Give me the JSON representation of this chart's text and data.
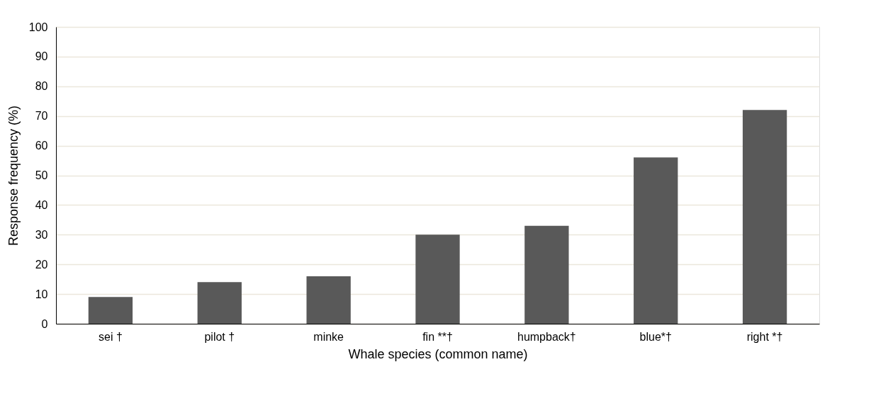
{
  "chart_data": {
    "type": "bar",
    "xlabel": "Whale species (common name)",
    "ylabel": "Response frequency (%)",
    "categories": [
      "sei †",
      "pilot †",
      "minke",
      "fin **†",
      "humpback†",
      "blue*†",
      "right *†"
    ],
    "values": [
      9,
      14,
      16,
      30,
      33,
      56,
      72
    ],
    "color": "#595959",
    "ylim": [
      0,
      100
    ],
    "yticks": [
      0,
      10,
      20,
      30,
      40,
      50,
      60,
      70,
      80,
      90,
      100
    ],
    "grid": "y"
  }
}
